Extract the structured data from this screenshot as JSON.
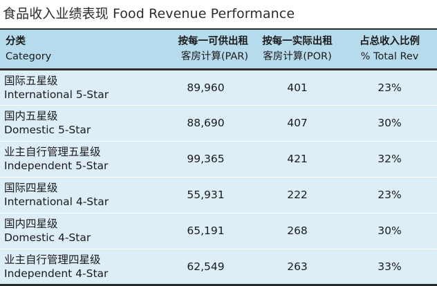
{
  "title": "食品收入业绩表现 Food Revenue Performance",
  "table": {
    "headers": [
      {
        "zh": "分类",
        "en": "Category"
      },
      {
        "zh": "按每一可供出租",
        "en": "客房计算(PAR)"
      },
      {
        "zh": "按每一实际出租",
        "en": "客房计算(POR)"
      },
      {
        "zh": "占总收入比例",
        "en": "% Total Rev"
      }
    ],
    "rows": [
      {
        "cat_zh": "国际五星级",
        "cat_en": "International 5-Star",
        "par": "89,960",
        "por": "401",
        "pct": "23%"
      },
      {
        "cat_zh": "国内五星级",
        "cat_en": "Domestic 5-Star",
        "par": "88,690",
        "por": "407",
        "pct": "30%"
      },
      {
        "cat_zh": "业主自行管理五星级",
        "cat_en": "Independent 5-Star",
        "par": "99,365",
        "por": "421",
        "pct": "32%"
      },
      {
        "cat_zh": "国际四星级",
        "cat_en": "International 4-Star",
        "par": "55,931",
        "por": "222",
        "pct": "23%"
      },
      {
        "cat_zh": "国内四星级",
        "cat_en": "Domestic 4-Star",
        "par": "65,191",
        "por": "268",
        "pct": "30%"
      },
      {
        "cat_zh": "业主自行管理四星级",
        "cat_en": "Independent 4-Star",
        "par": "62,549",
        "por": "263",
        "pct": "33%"
      }
    ]
  },
  "colors": {
    "header_bg": "#b6dbec",
    "row_bg": "#ddeef7",
    "rule": "#2a2a2a"
  }
}
